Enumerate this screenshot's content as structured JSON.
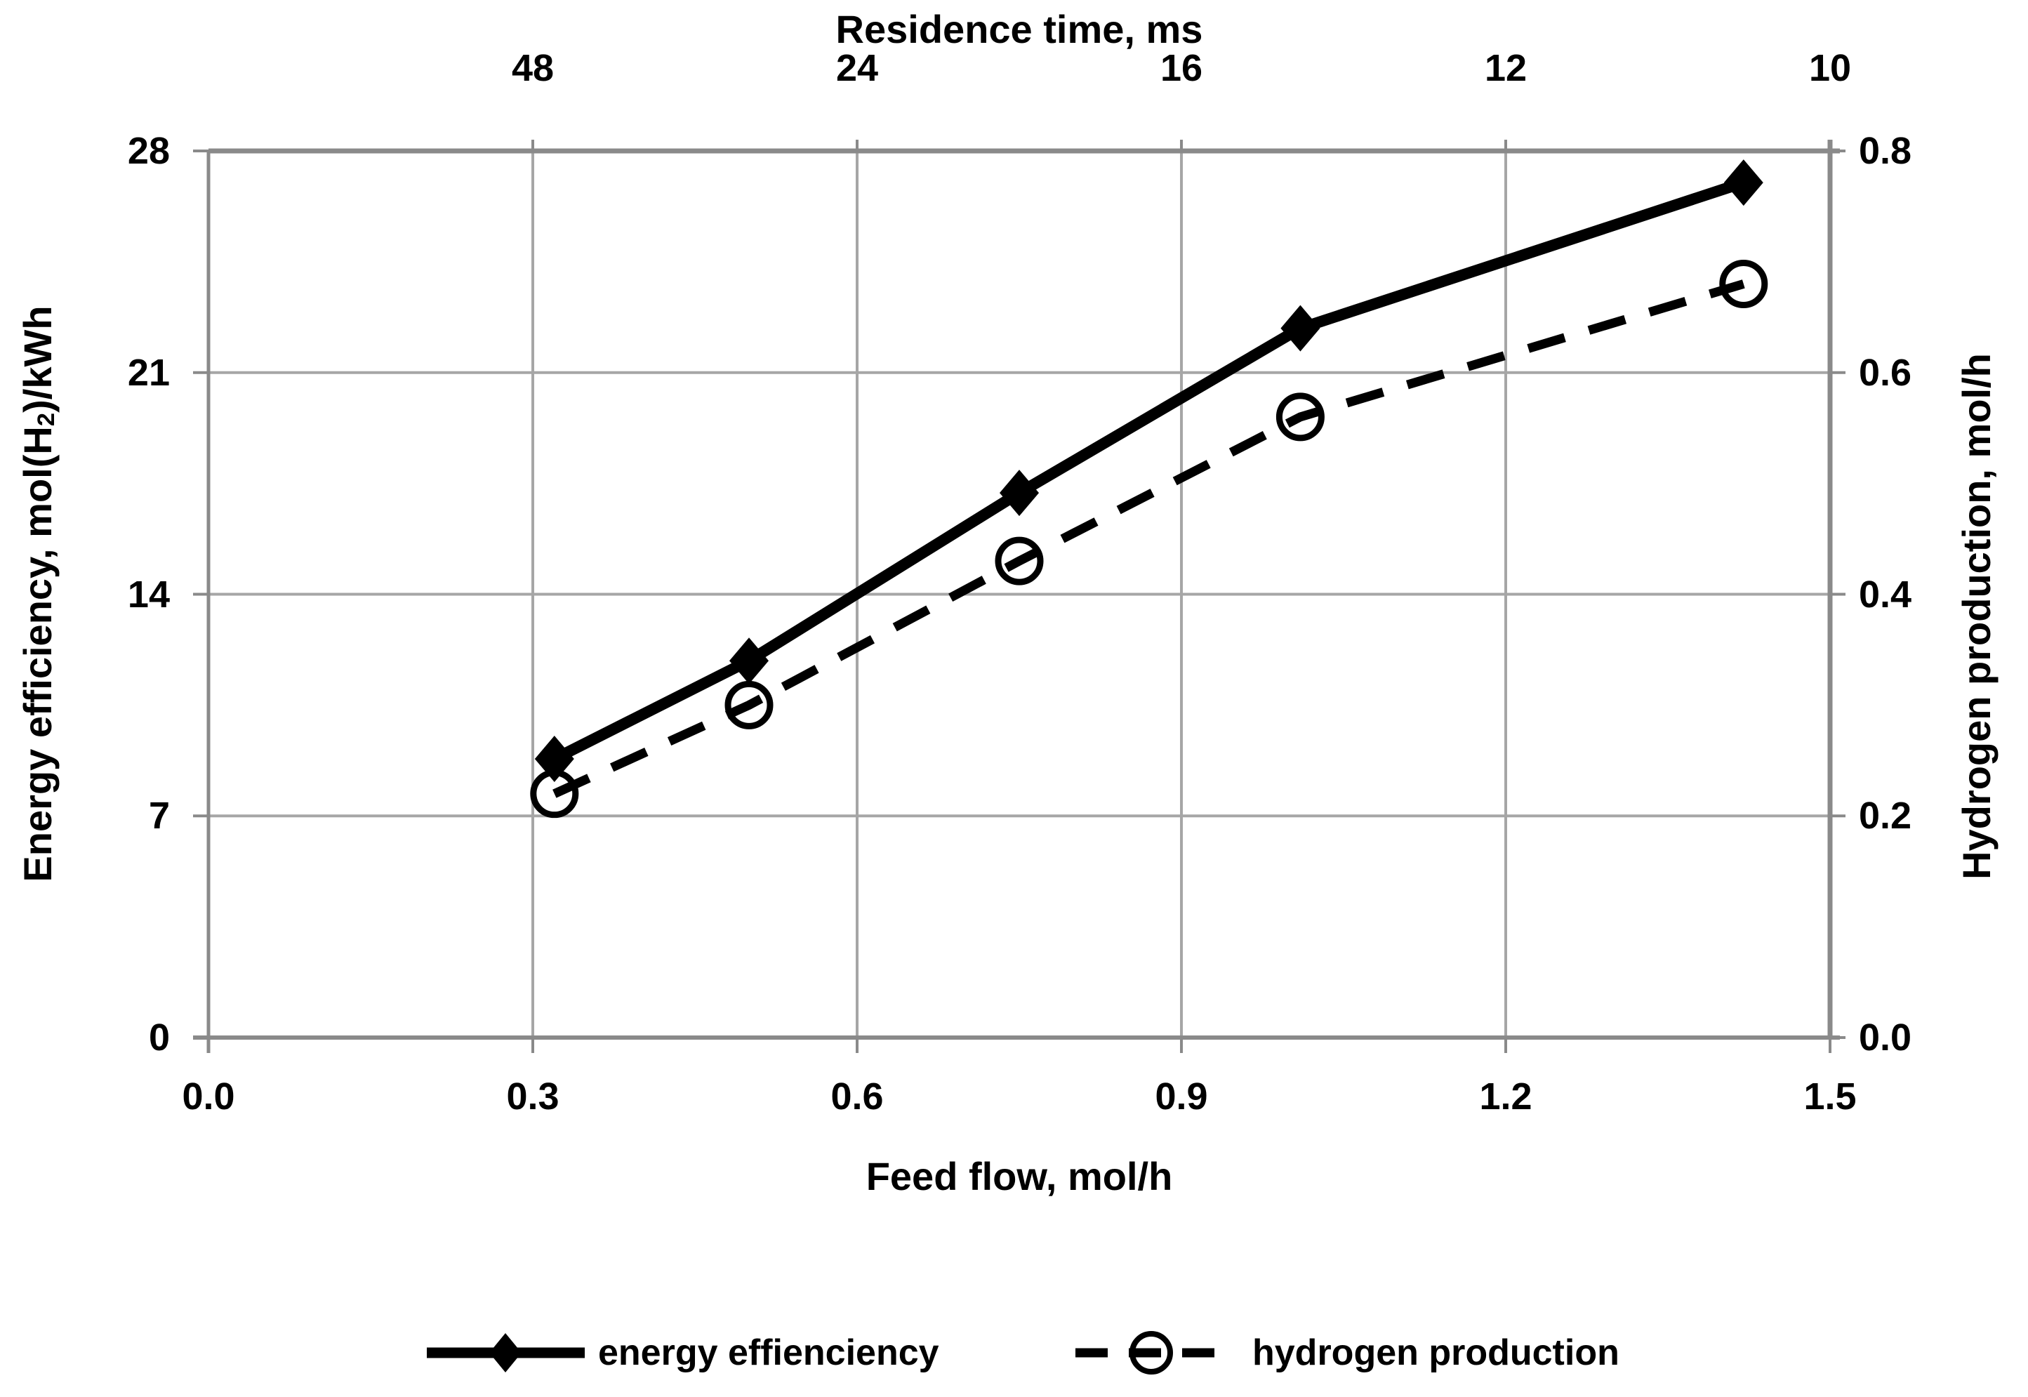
{
  "chart_data": {
    "type": "line",
    "top_axis": {
      "label": "Residence time, ms",
      "tick_labels": [
        "48",
        "24",
        "16",
        "12",
        "10"
      ],
      "tick_positions_feed": [
        0.3,
        0.6,
        0.9,
        1.2,
        1.5
      ]
    },
    "x_axis": {
      "label": "Feed flow, mol/h",
      "ticks": [
        0.0,
        0.3,
        0.6,
        0.9,
        1.2,
        1.5
      ],
      "tick_labels": [
        "0.0",
        "0.3",
        "0.6",
        "0.9",
        "1.2",
        "1.5"
      ],
      "range": [
        0,
        1.5
      ]
    },
    "y_left": {
      "label_prefix": "Energy efficiency, mol(H",
      "label_sub": "2",
      "label_suffix": ")/kWh",
      "ticks": [
        0,
        7,
        14,
        21,
        28
      ],
      "tick_labels": [
        "0",
        "7",
        "14",
        "21",
        "28"
      ],
      "range": [
        0,
        28
      ]
    },
    "y_right": {
      "label": "Hydrogen production, mol/h",
      "ticks": [
        0.0,
        0.2,
        0.4,
        0.6,
        0.8
      ],
      "tick_labels": [
        "0.0",
        "0.2",
        "0.4",
        "0.6",
        "0.8"
      ],
      "range": [
        0,
        0.8
      ]
    },
    "series": [
      {
        "name": "energy effienciency",
        "axis": "left",
        "x": [
          0.32,
          0.5,
          0.75,
          1.01,
          1.42
        ],
        "values": [
          8.8,
          11.9,
          17.2,
          22.4,
          27.0
        ],
        "marker": "filled-diamond",
        "line": "solid"
      },
      {
        "name": "hydrogen production",
        "axis": "right",
        "x": [
          0.32,
          0.5,
          0.75,
          1.01,
          1.42
        ],
        "values": [
          0.22,
          0.3,
          0.43,
          0.56,
          0.68
        ],
        "marker": "open-circle",
        "line": "dashed"
      }
    ],
    "grid": "on",
    "legend_position": "bottom-center",
    "colors": {
      "series": "#000000",
      "gridline": "#a6a6a6",
      "axis": "#8a8a8a",
      "text": "#000000",
      "background": "#ffffff"
    }
  }
}
